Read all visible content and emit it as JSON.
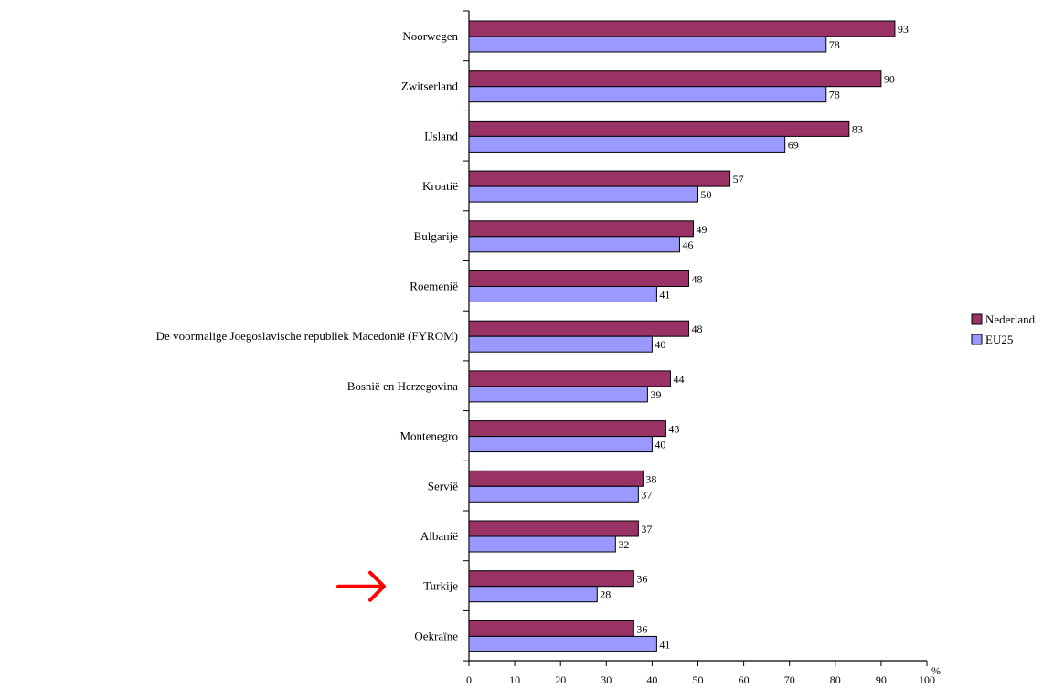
{
  "chart_data": {
    "type": "bar",
    "orientation": "horizontal",
    "categories": [
      "Noorwegen",
      "Zwitserland",
      "IJsland",
      "Kroatië",
      "Bulgarije",
      "Roemenië",
      "De voormalige Joegoslavische republiek Macedonië (FYROM)",
      "Bosnië en Herzegovina",
      "Montenegro",
      "Servië",
      "Albanië",
      "Turkije",
      "Oekraïne"
    ],
    "series": [
      {
        "name": "Nederland",
        "color": "#993366",
        "values": [
          93,
          90,
          83,
          57,
          49,
          48,
          48,
          44,
          43,
          38,
          37,
          36,
          36
        ]
      },
      {
        "name": "EU25",
        "color": "#9999ff",
        "values": [
          78,
          78,
          69,
          50,
          46,
          41,
          40,
          39,
          40,
          37,
          32,
          28,
          41
        ]
      }
    ],
    "xlim": [
      0,
      100
    ],
    "xticks": [
      0,
      10,
      20,
      30,
      40,
      50,
      60,
      70,
      80,
      90,
      100
    ],
    "xlabel": "%",
    "title": "",
    "ylabel": "",
    "grid": false,
    "legend_position": "right",
    "highlighted_category": "Turkije",
    "highlight_marker": "red-arrow",
    "highlight_color": "#ff0000"
  }
}
